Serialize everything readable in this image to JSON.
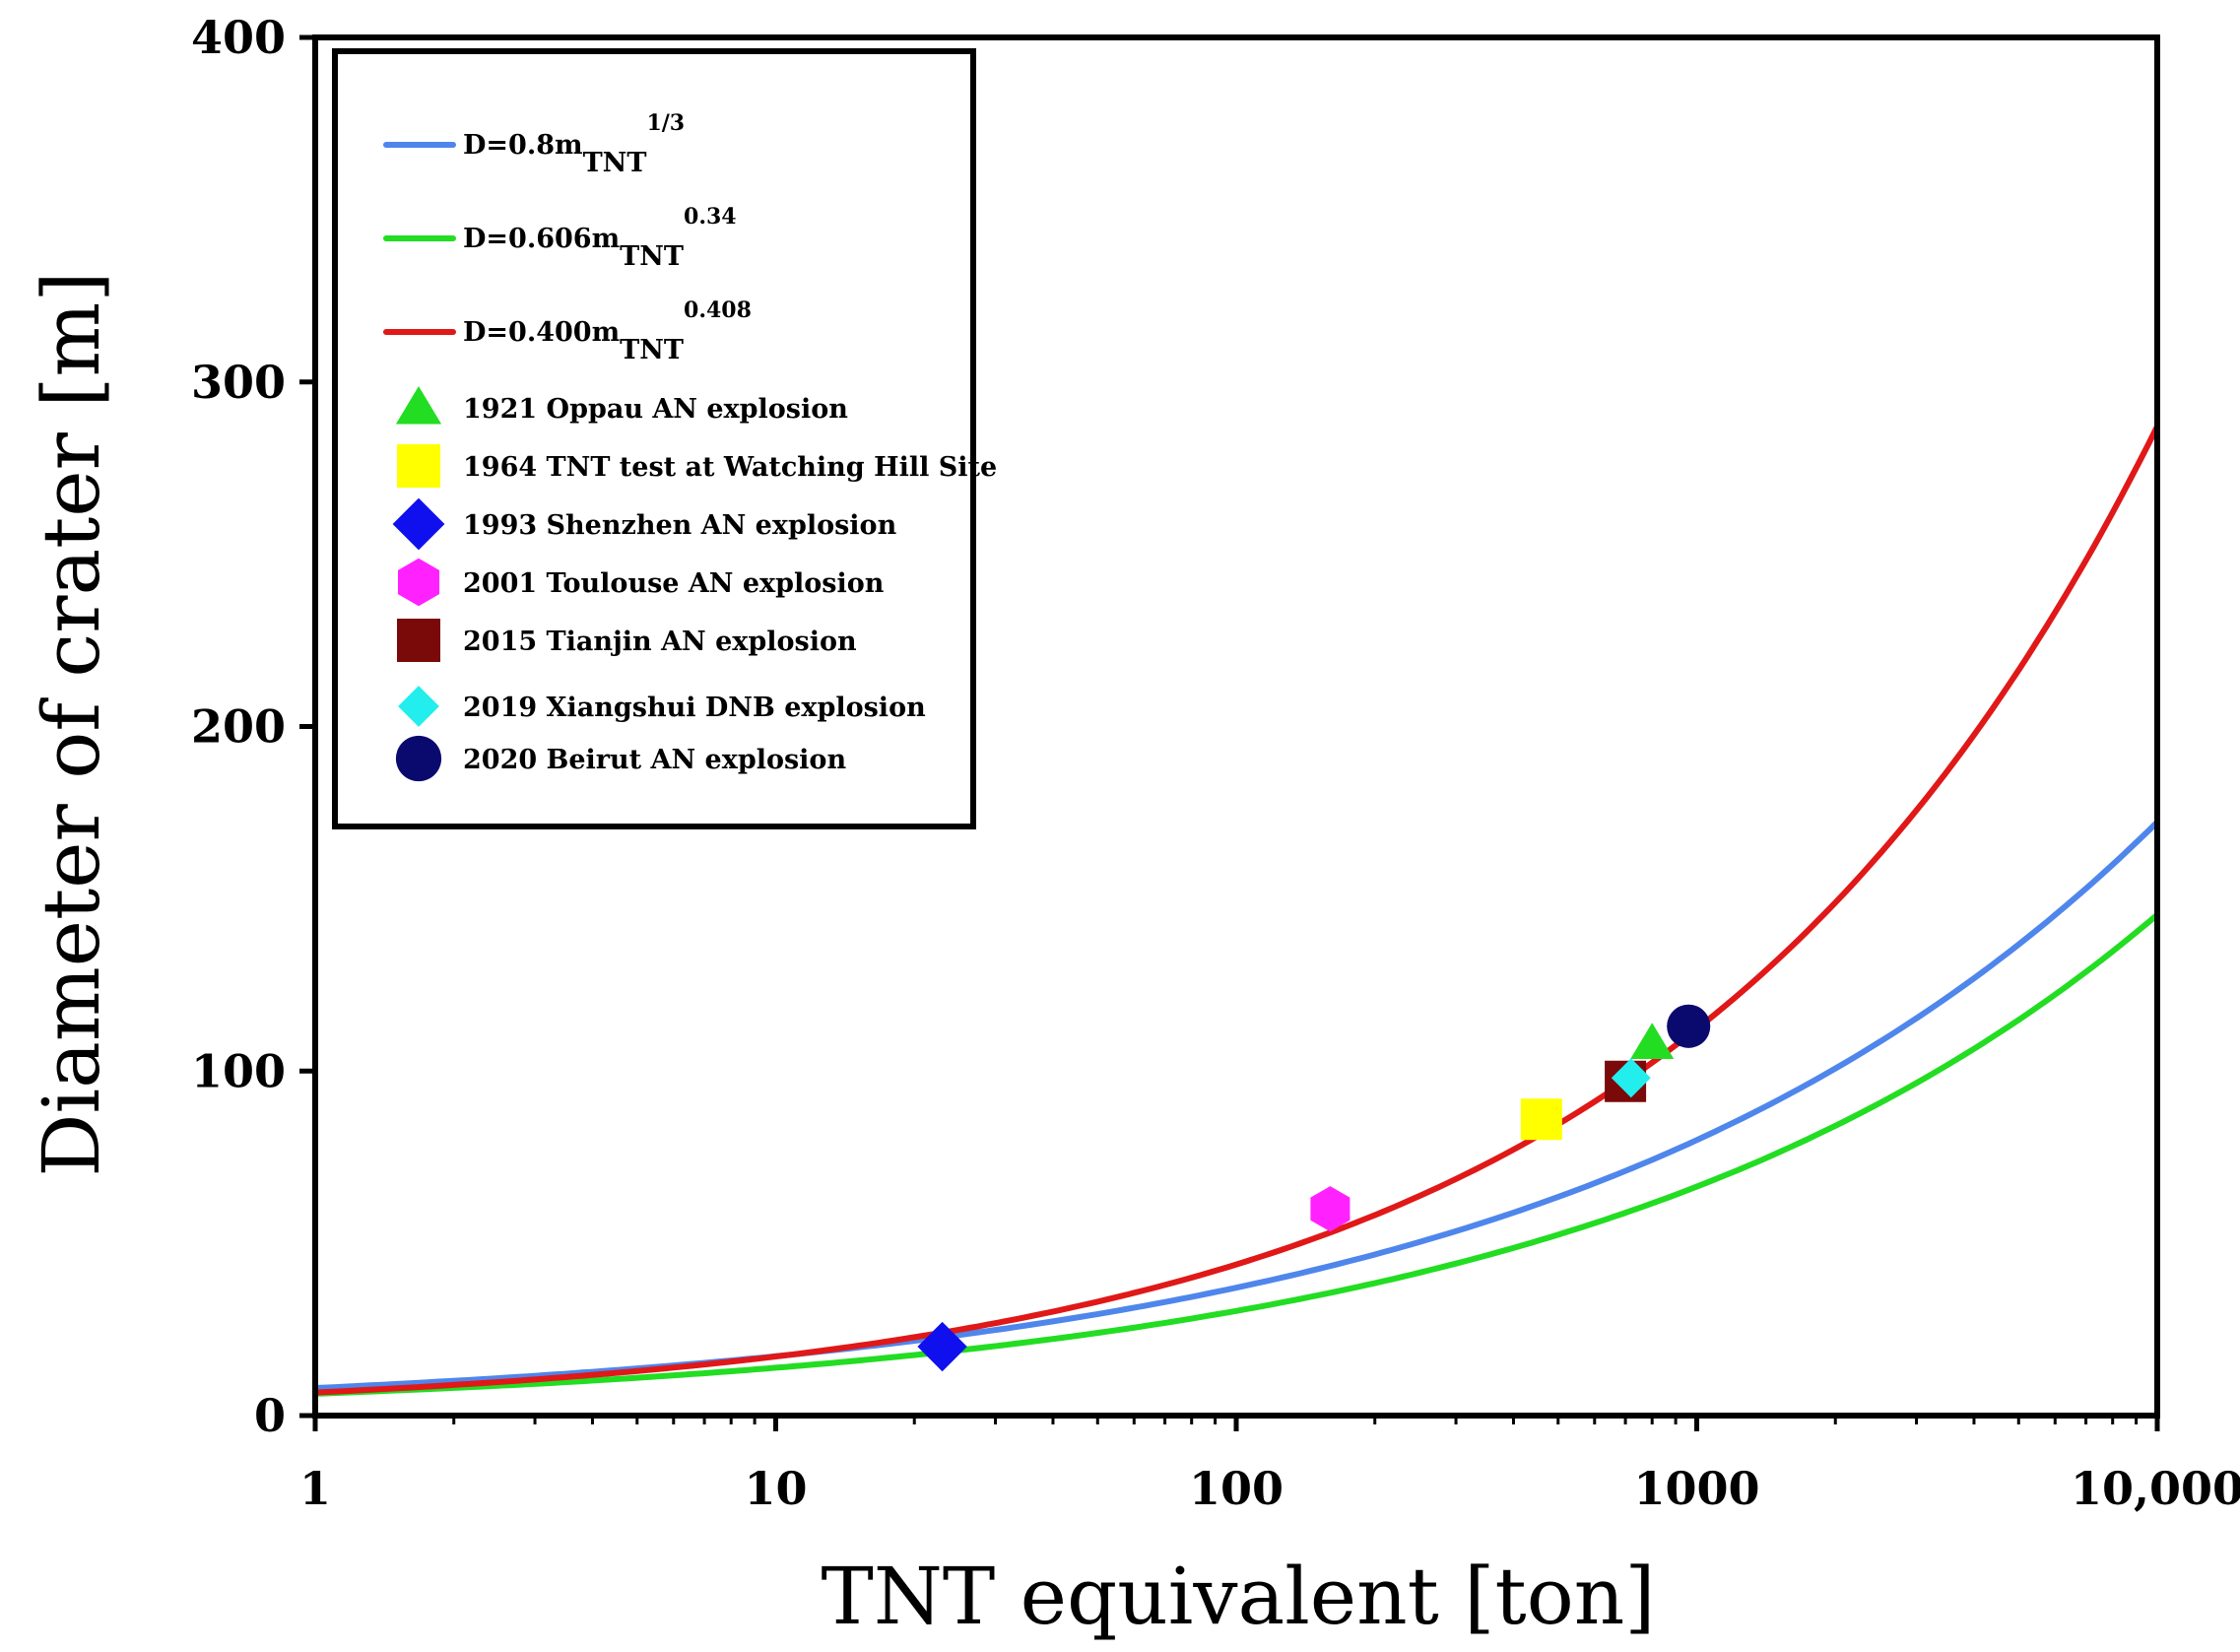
{
  "chart_data": {
    "type": "scatter",
    "title": "",
    "xlabel": "TNT equivalent [ton]",
    "ylabel": "Diameter of crater [m]",
    "x_scale": "log",
    "xlim": [
      1,
      10000
    ],
    "ylim": [
      0,
      400
    ],
    "grid": false,
    "legend_position": "top-left",
    "x_ticks": [
      1,
      10,
      100,
      1000,
      10000
    ],
    "x_tick_labels": [
      "1",
      "10",
      "100",
      "1000",
      "10,000"
    ],
    "y_ticks": [
      0,
      100,
      200,
      300,
      400
    ],
    "y_tick_labels": [
      "0",
      "100",
      "200",
      "300",
      "400"
    ],
    "curves": [
      {
        "name_base": "D=0.8m",
        "name_sub": "TNT",
        "name_sup": "1/3",
        "coef": 0.8,
        "exponent": 0.3333,
        "color": "#4f86ec"
      },
      {
        "name_base": "D=0.606m",
        "name_sub": "TNT",
        "name_sup": "0.34",
        "coef": 0.606,
        "exponent": 0.34,
        "color": "#22dd22"
      },
      {
        "name_base": "D=0.400m",
        "name_sub": "TNT",
        "name_sup": "0.408",
        "coef": 0.4,
        "exponent": 0.408,
        "color": "#e01818"
      }
    ],
    "points": [
      {
        "name": "1921 Oppau AN explosion",
        "x": 800,
        "y": 108,
        "marker": "triangle",
        "color": "#22dd22"
      },
      {
        "name": "1964 TNT test at Watching Hill Site",
        "x": 460,
        "y": 86,
        "marker": "square",
        "color": "#ffff00"
      },
      {
        "name": "1993 Shenzhen AN explosion",
        "x": 23,
        "y": 20,
        "marker": "diamond",
        "color": "#1010ee"
      },
      {
        "name": "2001 Toulouse AN explosion",
        "x": 160,
        "y": 60,
        "marker": "hexagon",
        "color": "#ff22ff"
      },
      {
        "name": "2015 Tianjin AN explosion",
        "x": 700,
        "y": 97,
        "marker": "square",
        "color": "#7a0a0a"
      },
      {
        "name": "2019 Xiangshui DNB explosion",
        "x": 720,
        "y": 98,
        "marker": "small-diamond",
        "color": "#22eeee"
      },
      {
        "name": "2020 Beirut AN explosion",
        "x": 960,
        "y": 113,
        "marker": "circle",
        "color": "#0a0a6e"
      }
    ]
  }
}
